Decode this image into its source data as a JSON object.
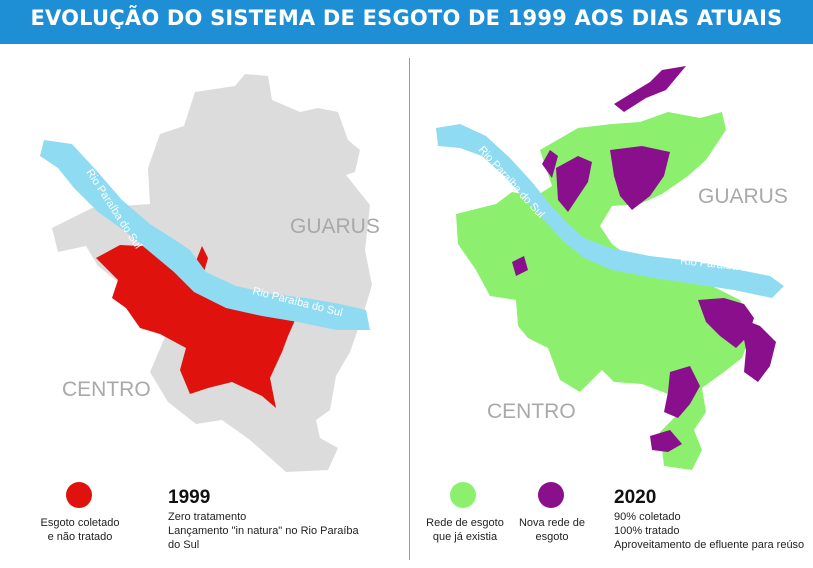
{
  "title": "EVOLUÇÃO DO SISTEMA DE ESGOTO DE 1999 AOS DIAS ATUAIS",
  "colors": {
    "title_bar": "#1e8fd4",
    "land": "#dcdcdc",
    "river": "#8fdcf2",
    "collected_untreated": "#e0120d",
    "existing_network": "#8cf06e",
    "new_network": "#8a0f8c"
  },
  "map_1999": {
    "place_labels": [
      "GUARUS",
      "CENTRO"
    ],
    "river_labels": [
      "Rio Paraíba do Sul",
      "Rio Paraíba do Sul"
    ]
  },
  "map_2020": {
    "place_labels": [
      "GUARUS",
      "CENTRO"
    ],
    "river_labels": [
      "Rio Paraíba do Sul",
      "Rio Paraíba do Sul"
    ]
  },
  "legend_1999": {
    "items": [
      {
        "label_lines": [
          "Esgoto coletado",
          "e não tratado"
        ],
        "color": "#e0120d"
      }
    ],
    "year": "1999",
    "lines": [
      "Zero tratamento",
      "Lançamento \"in natura\" no Rio Paraíba",
      "do Sul"
    ]
  },
  "legend_2020": {
    "items": [
      {
        "label_lines": [
          "Rede de esgoto",
          "que já existia"
        ],
        "color": "#8cf06e"
      },
      {
        "label_lines": [
          "Nova rede de",
          "esgoto"
        ],
        "color": "#8a0f8c"
      }
    ],
    "year": "2020",
    "lines": [
      "90% coletado",
      "100% tratado",
      "Aproveitamento de efluente para reúso"
    ]
  }
}
